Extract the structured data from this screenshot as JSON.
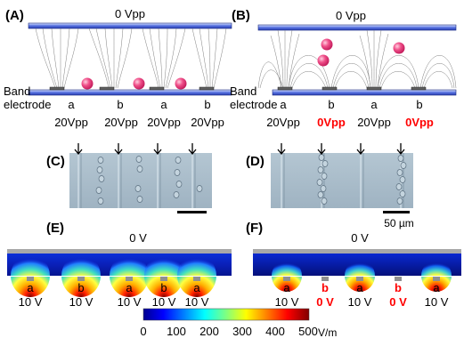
{
  "panel_labels": [
    "(A)",
    "(B)",
    "(C)",
    "(D)",
    "(E)",
    "(F)"
  ],
  "top_voltage": "0 Vpp",
  "band_electrode_label": [
    "Band",
    "electrode"
  ],
  "electrode_letters": [
    "a",
    "b",
    "a",
    "b"
  ],
  "panel_A_voltages": [
    "20Vpp",
    "20Vpp",
    "20Vpp",
    "20Vpp"
  ],
  "panel_B_voltages": [
    "20Vpp",
    "0Vpp",
    "20Vpp",
    "0Vpp"
  ],
  "scale_bar_label": "50 µm",
  "sim_top_voltage": "0 V",
  "panel_E_letters": [
    "a",
    "b",
    "a",
    "b",
    "a"
  ],
  "panel_E_voltages": [
    "10 V",
    "10 V",
    "10 V",
    "10 V",
    "10 V"
  ],
  "panel_F_letters": [
    "a",
    "b",
    "a",
    "b",
    "a"
  ],
  "panel_F_voltages": [
    "10 V",
    "0 V",
    "10 V",
    "0 V",
    "10 V"
  ],
  "colorbar": {
    "ticks": [
      "0",
      "100",
      "200",
      "300",
      "400",
      "500"
    ],
    "unit": "V/m"
  },
  "colors": {
    "electrode_blue": "#3552c8",
    "cell_pink": "#e83a7a",
    "highlight_red": "#ff0000",
    "micrograph": "#a9bcc9"
  }
}
